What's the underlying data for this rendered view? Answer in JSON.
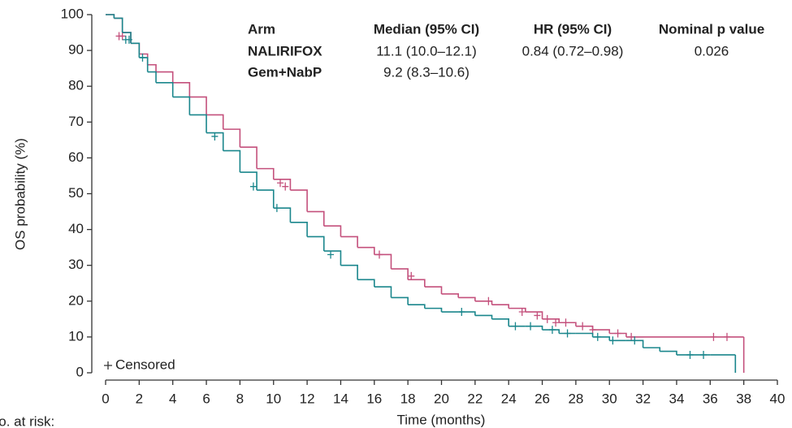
{
  "chart_data": {
    "type": "step",
    "xlabel": "Time (months)",
    "ylabel": "OS probability (%)",
    "xlim": [
      0,
      40
    ],
    "xticks": [
      0,
      2,
      4,
      6,
      8,
      10,
      12,
      14,
      16,
      18,
      20,
      22,
      24,
      26,
      28,
      30,
      32,
      34,
      36,
      38,
      40
    ],
    "ylim": [
      0,
      100
    ],
    "yticks": [
      0,
      10,
      20,
      30,
      40,
      50,
      60,
      70,
      80,
      90,
      100
    ],
    "grid": false,
    "censored_legend": "Censored",
    "footer": "No. at risk:",
    "stats_table": {
      "header": [
        "Arm",
        "Median (95% CI)",
        "HR (95% CI)",
        "Nominal p value"
      ],
      "rows": [
        [
          "NALIRIFOX",
          "11.1 (10.0–12.1)",
          "0.84 (0.72–0.98)",
          "0.026"
        ],
        [
          "Gem+NabP",
          "9.2 (8.3–10.6)"
        ]
      ]
    },
    "series": [
      {
        "name": "NALIRIFOX",
        "color": "#c4507c",
        "x": [
          0,
          0.5,
          1,
          1.5,
          2,
          2.5,
          3,
          4,
          5,
          6,
          7,
          8,
          9,
          10,
          11,
          12,
          13,
          14,
          15,
          16,
          17,
          18,
          19,
          20,
          21,
          22,
          23,
          24,
          25,
          26,
          27,
          28,
          29,
          30,
          31,
          38,
          38
        ],
        "values": [
          100,
          99,
          95,
          92,
          89,
          86,
          84,
          81,
          77,
          72,
          68,
          63,
          57,
          54,
          51,
          45,
          41,
          38,
          35,
          33,
          29,
          26,
          24,
          22,
          21,
          20,
          19,
          18,
          17,
          15,
          14,
          13,
          12,
          11,
          10,
          10,
          0
        ],
        "censored": {
          "x": [
            0.8,
            1.0,
            10.4,
            10.7,
            16.3,
            18.2,
            22.8,
            24.8,
            25.7,
            26.3,
            26.8,
            27.4,
            28.4,
            29.0,
            30.5,
            31.3,
            36.2,
            37.0
          ],
          "y": [
            94,
            94,
            53,
            52,
            33,
            27,
            20,
            17,
            16,
            15,
            14,
            14,
            13,
            12,
            11,
            10,
            10,
            10
          ]
        }
      },
      {
        "name": "Gem+NabP",
        "color": "#1a868c",
        "x": [
          0,
          0.5,
          1,
          1.5,
          2,
          2.5,
          3,
          4,
          5,
          6,
          7,
          8,
          9,
          10,
          11,
          12,
          13,
          14,
          15,
          16,
          17,
          18,
          19,
          20,
          21,
          22,
          23,
          24,
          25,
          26,
          27,
          28,
          29,
          30,
          31,
          32,
          33,
          34,
          36,
          37.5,
          37.5
        ],
        "values": [
          100,
          99,
          95,
          92,
          88,
          84,
          81,
          77,
          72,
          67,
          62,
          56,
          51,
          46,
          42,
          38,
          34,
          30,
          26,
          24,
          21,
          19,
          18,
          17,
          17,
          16,
          15,
          13,
          13,
          12,
          11,
          11,
          10,
          9,
          9,
          7,
          6,
          5,
          5,
          5,
          0
        ],
        "censored": {
          "x": [
            1.2,
            1.4,
            2.2,
            6.5,
            8.8,
            10.2,
            13.4,
            21.2,
            24.4,
            25.3,
            26.6,
            27.5,
            29.3,
            30.2,
            31.5,
            34.8,
            35.6
          ],
          "y": [
            93,
            93,
            88,
            66,
            52,
            46,
            33,
            17,
            13,
            13,
            12,
            11,
            10,
            9,
            9,
            5,
            5
          ]
        }
      }
    ]
  }
}
